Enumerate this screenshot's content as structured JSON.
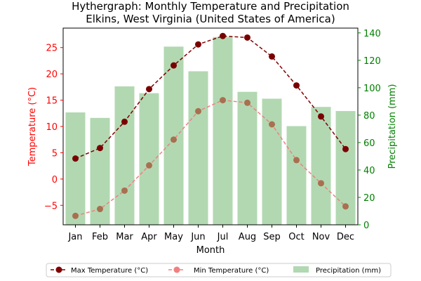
{
  "chart_data": {
    "type": "bar+line",
    "title": "Hythergraph: Monthly Temperature and Precipitation",
    "subtitle": "Elkins, West Virginia (United States of America)",
    "xlabel": "Month",
    "ylabel_left": "Temperature (°C)",
    "ylabel_right": "Precipitation (mm)",
    "categories": [
      "Jan",
      "Feb",
      "Mar",
      "Apr",
      "May",
      "Jun",
      "Jul",
      "Aug",
      "Sep",
      "Oct",
      "Nov",
      "Dec"
    ],
    "ylim_left": [
      -8.7,
      28.7
    ],
    "yticks_left": [
      -5,
      0,
      5,
      10,
      15,
      20,
      25
    ],
    "ylim_right": [
      0,
      143.5
    ],
    "yticks_right": [
      0,
      20,
      40,
      60,
      80,
      100,
      120,
      140
    ],
    "grid": false,
    "legend_position": "bottom-center",
    "series": [
      {
        "name": "Max Temperature (°C)",
        "type": "line",
        "axis": "left",
        "color": "#800000",
        "values": [
          3.9,
          5.9,
          10.9,
          17.1,
          21.6,
          25.6,
          27.2,
          26.9,
          23.3,
          17.8,
          11.9,
          5.7
        ]
      },
      {
        "name": "Min Temperature (°C)",
        "type": "line",
        "axis": "left",
        "color": "#f08080",
        "values": [
          -7.0,
          -5.7,
          -2.2,
          2.6,
          7.5,
          12.9,
          15.0,
          14.5,
          10.4,
          3.6,
          -0.8,
          -5.2
        ]
      },
      {
        "name": "Precipitation (mm)",
        "type": "bar",
        "axis": "right",
        "color": "#b2d8b2",
        "values": [
          82,
          78,
          101,
          96,
          130,
          112,
          137,
          97,
          92,
          72,
          86,
          83
        ]
      }
    ],
    "colors": {
      "left_axis": "#ff0000",
      "right_axis": "#008000"
    }
  }
}
